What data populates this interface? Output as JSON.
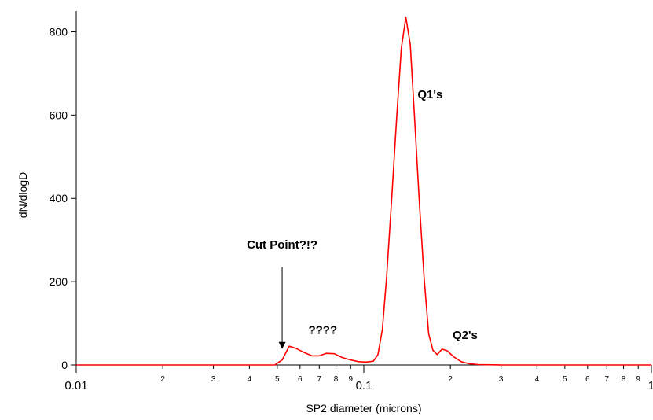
{
  "chart_data": {
    "type": "line",
    "title": "",
    "xlabel": "SP2 diameter (microns)",
    "ylabel": "dN/dlogD",
    "x_scale": "log",
    "xlim": [
      0.01,
      1
    ],
    "ylim": [
      0,
      850
    ],
    "grid": false,
    "y_ticks": [
      {
        "value": 0,
        "label": "0"
      },
      {
        "value": 200,
        "label": "200"
      },
      {
        "value": 400,
        "label": "400"
      },
      {
        "value": 600,
        "label": "600"
      },
      {
        "value": 800,
        "label": "800"
      }
    ],
    "x_ticks_major": [
      {
        "value": 0.01,
        "label": "0.01"
      },
      {
        "value": 0.1,
        "label": "0.1"
      },
      {
        "value": 1,
        "label": "1"
      }
    ],
    "x_ticks_minor": [
      {
        "value": 0.02,
        "label": "2"
      },
      {
        "value": 0.03,
        "label": "3"
      },
      {
        "value": 0.04,
        "label": "4"
      },
      {
        "value": 0.05,
        "label": "5"
      },
      {
        "value": 0.06,
        "label": "6"
      },
      {
        "value": 0.07,
        "label": "7"
      },
      {
        "value": 0.08,
        "label": "8"
      },
      {
        "value": 0.09,
        "label": "9"
      },
      {
        "value": 0.2,
        "label": "2"
      },
      {
        "value": 0.3,
        "label": "3"
      },
      {
        "value": 0.4,
        "label": "4"
      },
      {
        "value": 0.5,
        "label": "5"
      },
      {
        "value": 0.6,
        "label": "6"
      },
      {
        "value": 0.7,
        "label": "7"
      },
      {
        "value": 0.8,
        "label": "8"
      },
      {
        "value": 0.9,
        "label": "9"
      }
    ],
    "series": [
      {
        "color": "#ff0000",
        "points": [
          [
            0.01,
            0
          ],
          [
            0.049,
            0
          ],
          [
            0.052,
            12
          ],
          [
            0.055,
            45
          ],
          [
            0.058,
            40
          ],
          [
            0.062,
            30
          ],
          [
            0.066,
            22
          ],
          [
            0.07,
            22
          ],
          [
            0.074,
            28
          ],
          [
            0.079,
            27
          ],
          [
            0.084,
            18
          ],
          [
            0.09,
            12
          ],
          [
            0.096,
            8
          ],
          [
            0.102,
            7
          ],
          [
            0.108,
            9
          ],
          [
            0.112,
            25
          ],
          [
            0.116,
            85
          ],
          [
            0.12,
            210
          ],
          [
            0.125,
            400
          ],
          [
            0.13,
            590
          ],
          [
            0.135,
            760
          ],
          [
            0.14,
            835
          ],
          [
            0.145,
            770
          ],
          [
            0.15,
            600
          ],
          [
            0.156,
            390
          ],
          [
            0.162,
            210
          ],
          [
            0.168,
            75
          ],
          [
            0.174,
            35
          ],
          [
            0.18,
            25
          ],
          [
            0.187,
            38
          ],
          [
            0.195,
            34
          ],
          [
            0.205,
            20
          ],
          [
            0.218,
            8
          ],
          [
            0.232,
            3
          ],
          [
            0.25,
            1
          ],
          [
            0.3,
            0
          ],
          [
            1,
            0
          ]
        ]
      }
    ],
    "annotations": [
      {
        "text": "Cut Point?!?",
        "x": 0.052,
        "y": 280
      },
      {
        "text": "????",
        "x": 0.072,
        "y": 75
      },
      {
        "text": "Q1's",
        "x": 0.17,
        "y": 640
      },
      {
        "text": "Q2's",
        "x": 0.225,
        "y": 62
      }
    ],
    "arrow": {
      "from": [
        0.052,
        235
      ],
      "to": [
        0.052,
        40
      ]
    }
  }
}
